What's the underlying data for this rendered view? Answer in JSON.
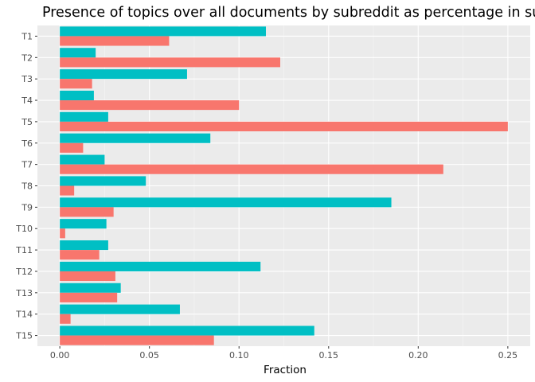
{
  "chart_data": {
    "type": "bar",
    "orientation": "horizontal",
    "title": "Presence of topics over all documents by subreddit as percentage in subreddit",
    "xlabel": "Fraction",
    "ylabel": "",
    "categories": [
      "T1",
      "T2",
      "T3",
      "T4",
      "T5",
      "T6",
      "T7",
      "T8",
      "T9",
      "T10",
      "T11",
      "T12",
      "T13",
      "T14",
      "T15"
    ],
    "xlim": [
      -0.0125,
      0.2625
    ],
    "xticks": [
      0.0,
      0.05,
      0.1,
      0.15,
      0.2,
      0.25
    ],
    "xtick_labels": [
      "0.00",
      "0.05",
      "0.10",
      "0.15",
      "0.20",
      "0.25"
    ],
    "grid": true,
    "legend": "none",
    "series": [
      {
        "color": "#00BFC4",
        "values": [
          0.115,
          0.02,
          0.071,
          0.019,
          0.027,
          0.084,
          0.025,
          0.048,
          0.185,
          0.026,
          0.027,
          0.112,
          0.034,
          0.067,
          0.142
        ]
      },
      {
        "color": "#F8766D",
        "values": [
          0.061,
          0.123,
          0.018,
          0.1,
          0.25,
          0.013,
          0.214,
          0.008,
          0.03,
          0.003,
          0.022,
          0.031,
          0.032,
          0.006,
          0.086
        ]
      }
    ],
    "colors": {
      "panel_background": "#EBEBEB",
      "major_grid": "#FFFFFF",
      "minor_grid": "#F5F5F5"
    }
  }
}
